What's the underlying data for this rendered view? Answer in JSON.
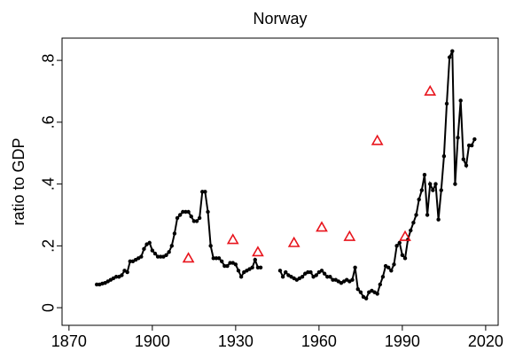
{
  "chart_data": {
    "type": "line",
    "title": "Norway",
    "y_label": "ratio to GDP",
    "xlim": [
      1867.5,
      2024.5
    ],
    "xticks": [
      1870,
      1900,
      1930,
      1960,
      1990,
      2020
    ],
    "ylim": [
      -0.057,
      0.872
    ],
    "yticks": [
      0,
      {
        "value": 0.2,
        "label": ".2"
      },
      {
        "value": 0.4,
        "label": ".4"
      },
      {
        "value": 0.6,
        "label": ".6"
      },
      {
        "value": 0.8,
        "label": ".8"
      }
    ],
    "grid": false,
    "series": [
      {
        "style": "line",
        "color": "#000000",
        "x": [
          1880,
          1881,
          1882,
          1883,
          1884,
          1885,
          1886,
          1887,
          1888,
          1889,
          1890,
          1891,
          1892,
          1893,
          1894,
          1895,
          1896,
          1897,
          1898,
          1899,
          1900,
          1901,
          1902,
          1903,
          1904,
          1905,
          1906,
          1907,
          1908,
          1909,
          1910,
          1911,
          1912,
          1913,
          1914,
          1915,
          1916,
          1917,
          1918,
          1919,
          1920,
          1921,
          1922,
          1923,
          1924,
          1925,
          1926,
          1927,
          1928,
          1929,
          1930,
          1931,
          1932,
          1933,
          1934,
          1935,
          1936,
          1937,
          1938,
          1939,
          1940,
          1941,
          1942,
          1943,
          1944,
          1945,
          1946,
          1947,
          1948,
          1949,
          1950,
          1951,
          1952,
          1953,
          1954,
          1955,
          1956,
          1957,
          1958,
          1959,
          1960,
          1961,
          1962,
          1963,
          1964,
          1965,
          1966,
          1967,
          1968,
          1969,
          1970,
          1971,
          1972,
          1973,
          1974,
          1975,
          1976,
          1977,
          1978,
          1979,
          1980,
          1981,
          1982,
          1983,
          1984,
          1985,
          1986,
          1987,
          1988,
          1989,
          1990,
          1991,
          1992,
          1993,
          1994,
          1995,
          1996,
          1997,
          1998,
          1999,
          2000,
          2001,
          2002,
          2003,
          2004,
          2005,
          2006,
          2007,
          2008,
          2009,
          2010,
          2011,
          2012,
          2013,
          2014,
          2015,
          2016
        ],
        "values": [
          0.075,
          0.075,
          0.078,
          0.08,
          0.085,
          0.09,
          0.095,
          0.1,
          0.1,
          0.105,
          0.12,
          0.115,
          0.15,
          0.15,
          0.155,
          0.16,
          0.165,
          0.19,
          0.205,
          0.21,
          0.185,
          0.175,
          0.165,
          0.165,
          0.165,
          0.17,
          0.18,
          0.2,
          0.24,
          0.29,
          0.3,
          0.31,
          0.31,
          0.31,
          0.295,
          0.28,
          0.28,
          0.29,
          0.375,
          0.375,
          0.31,
          0.2,
          0.16,
          0.16,
          0.16,
          0.15,
          0.135,
          0.135,
          0.145,
          0.145,
          0.14,
          0.12,
          0.1,
          0.115,
          0.12,
          0.125,
          0.13,
          0.155,
          0.13,
          0.13,
          null,
          null,
          null,
          null,
          null,
          null,
          0.12,
          0.1,
          0.115,
          0.105,
          0.1,
          0.095,
          0.09,
          0.095,
          0.1,
          0.11,
          0.115,
          0.115,
          0.1,
          0.105,
          0.115,
          0.12,
          0.11,
          0.1,
          0.1,
          0.09,
          0.09,
          0.085,
          0.08,
          0.085,
          0.09,
          0.085,
          0.09,
          0.13,
          0.06,
          0.05,
          0.035,
          0.03,
          0.05,
          0.055,
          0.05,
          0.045,
          0.075,
          0.1,
          0.135,
          0.13,
          0.12,
          0.14,
          0.2,
          0.21,
          0.17,
          0.16,
          0.22,
          0.25,
          0.275,
          0.3,
          0.35,
          0.38,
          0.43,
          0.3,
          0.4,
          0.38,
          0.4,
          0.285,
          0.38,
          0.49,
          0.66,
          0.81,
          0.83,
          0.4,
          0.55,
          0.67,
          0.48,
          0.46,
          0.525,
          0.525,
          0.545
        ]
      },
      {
        "style": "triangle",
        "color": "#e8141c",
        "x": [
          1913,
          1929,
          1938,
          1951,
          1961,
          1971,
          1981,
          1991,
          2000
        ],
        "values": [
          0.16,
          0.22,
          0.18,
          0.21,
          0.26,
          0.23,
          0.54,
          0.23,
          0.7
        ]
      }
    ]
  }
}
